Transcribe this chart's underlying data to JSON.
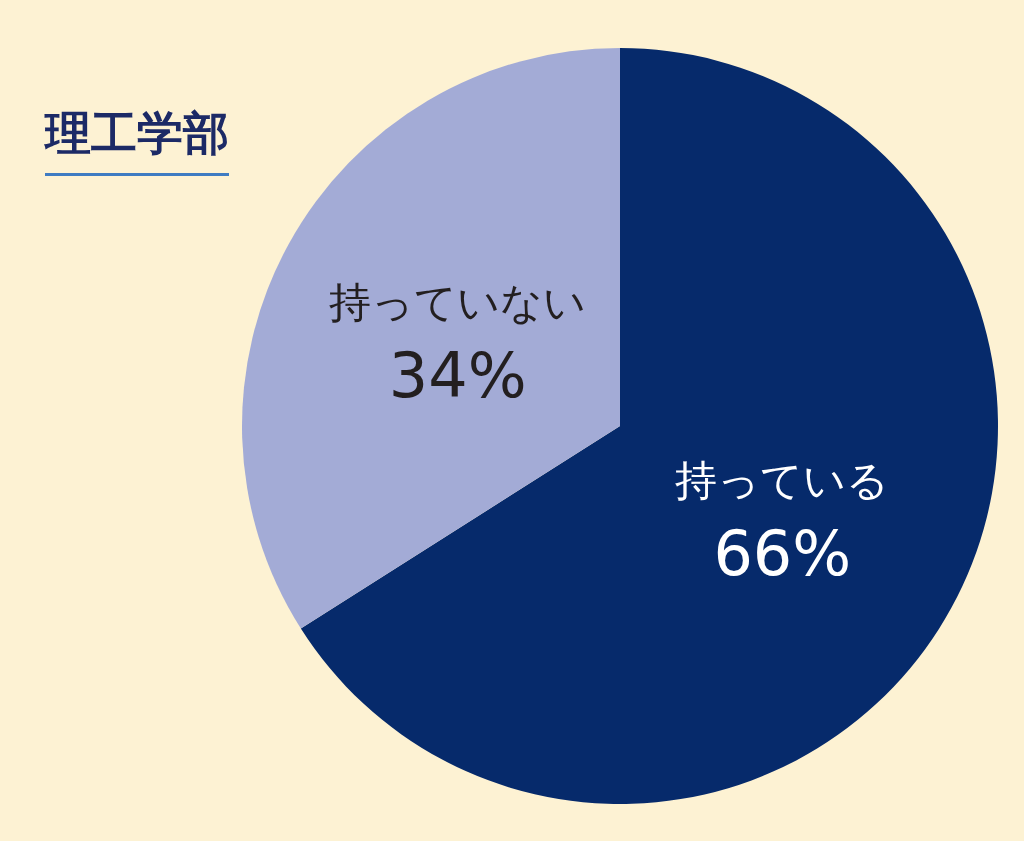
{
  "chart_data": {
    "type": "pie",
    "title": "理工学部",
    "categories": [
      "持っている",
      "持っていない"
    ],
    "values": [
      66,
      34
    ],
    "value_labels": [
      "66%",
      "34%"
    ],
    "colors": [
      "#062a6b",
      "#a3abd6"
    ]
  }
}
